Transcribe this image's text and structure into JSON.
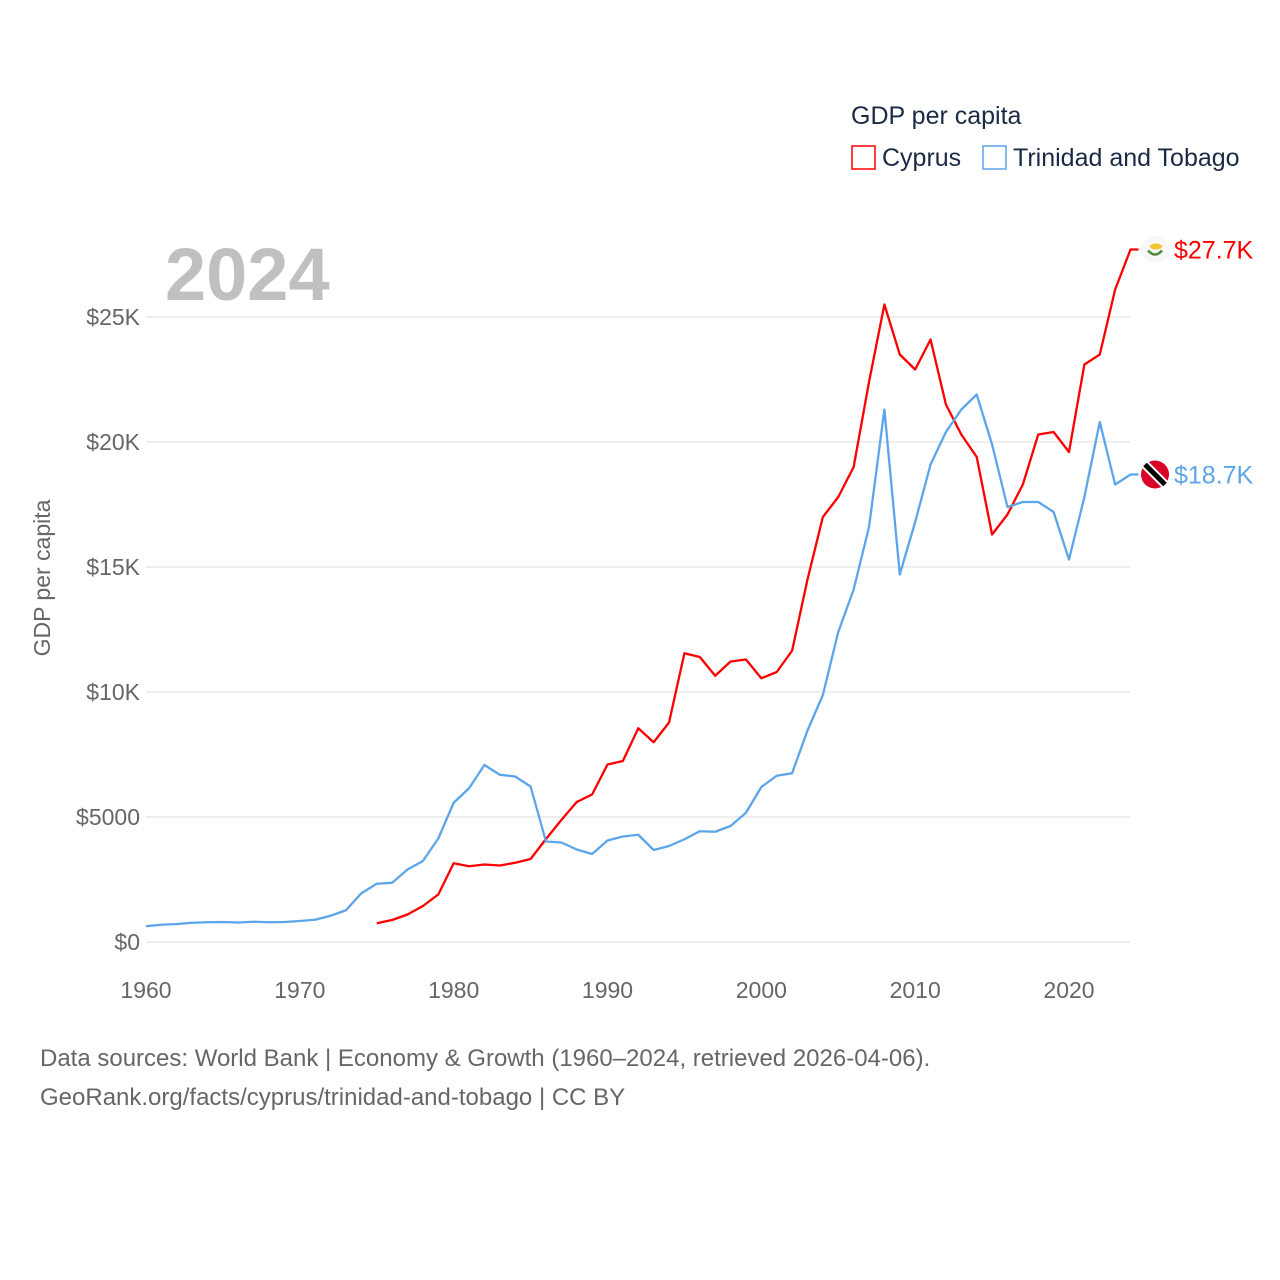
{
  "chart_data": {
    "type": "line",
    "title": "GDP per capita",
    "ylabel": "GDP per capita",
    "xlabel": "",
    "year_label": "2024",
    "xlim": [
      1960,
      2024
    ],
    "ylim": [
      0,
      28000
    ],
    "x_ticks": [
      1960,
      1970,
      1980,
      1990,
      2000,
      2010,
      2020
    ],
    "y_ticks": [
      {
        "value": 0,
        "label": "$0"
      },
      {
        "value": 5000,
        "label": "$5000"
      },
      {
        "value": 10000,
        "label": "$10K"
      },
      {
        "value": 15000,
        "label": "$15K"
      },
      {
        "value": 20000,
        "label": "$20K"
      },
      {
        "value": 25000,
        "label": "$25K"
      }
    ],
    "grid": true,
    "legend_position": "top-right",
    "series": [
      {
        "name": "Cyprus",
        "color": "#ff0000",
        "end_label": "$27.7K",
        "flag_icon": "cyprus-flag-icon",
        "start_year": 1975,
        "values": [
          750,
          880,
          1100,
          1440,
          1900,
          3150,
          3030,
          3100,
          3060,
          3170,
          3320,
          4120,
          4880,
          5600,
          5900,
          7100,
          7240,
          8550,
          7990,
          8780,
          11550,
          11400,
          10650,
          11220,
          11300,
          10550,
          10800,
          11650,
          14500,
          17000,
          17800,
          19000,
          22400,
          25500,
          23500,
          22900,
          24100,
          21500,
          20300,
          19400,
          16300,
          17100,
          18300,
          20300,
          20400,
          19600,
          23100,
          23500,
          26100,
          27700
        ]
      },
      {
        "name": "Trinidad and Tobago",
        "color": "#5da5ea",
        "end_label": "$18.7K",
        "flag_icon": "trinidad-flag-icon",
        "start_year": 1960,
        "values": [
          630,
          690,
          720,
          770,
          790,
          800,
          780,
          810,
          790,
          800,
          840,
          890,
          1050,
          1270,
          1950,
          2330,
          2370,
          2900,
          3240,
          4140,
          5570,
          6150,
          7080,
          6690,
          6620,
          6220,
          4020,
          3980,
          3700,
          3520,
          4060,
          4220,
          4290,
          3680,
          3840,
          4110,
          4430,
          4410,
          4640,
          5170,
          6200,
          6650,
          6750,
          8460,
          9880,
          12400,
          14100,
          16600,
          21300,
          14700,
          16800,
          19100,
          20400,
          21300,
          21900,
          19900,
          17400,
          17600,
          17600,
          17200,
          15300,
          17800,
          20800,
          18300,
          18700
        ]
      }
    ]
  },
  "footer": {
    "line1": "Data sources: World Bank | Economy & Growth (1960–2024, retrieved 2026-04-06).",
    "line2": "GeoRank.org/facts/cyprus/trinidad-and-tobago | CC BY"
  }
}
